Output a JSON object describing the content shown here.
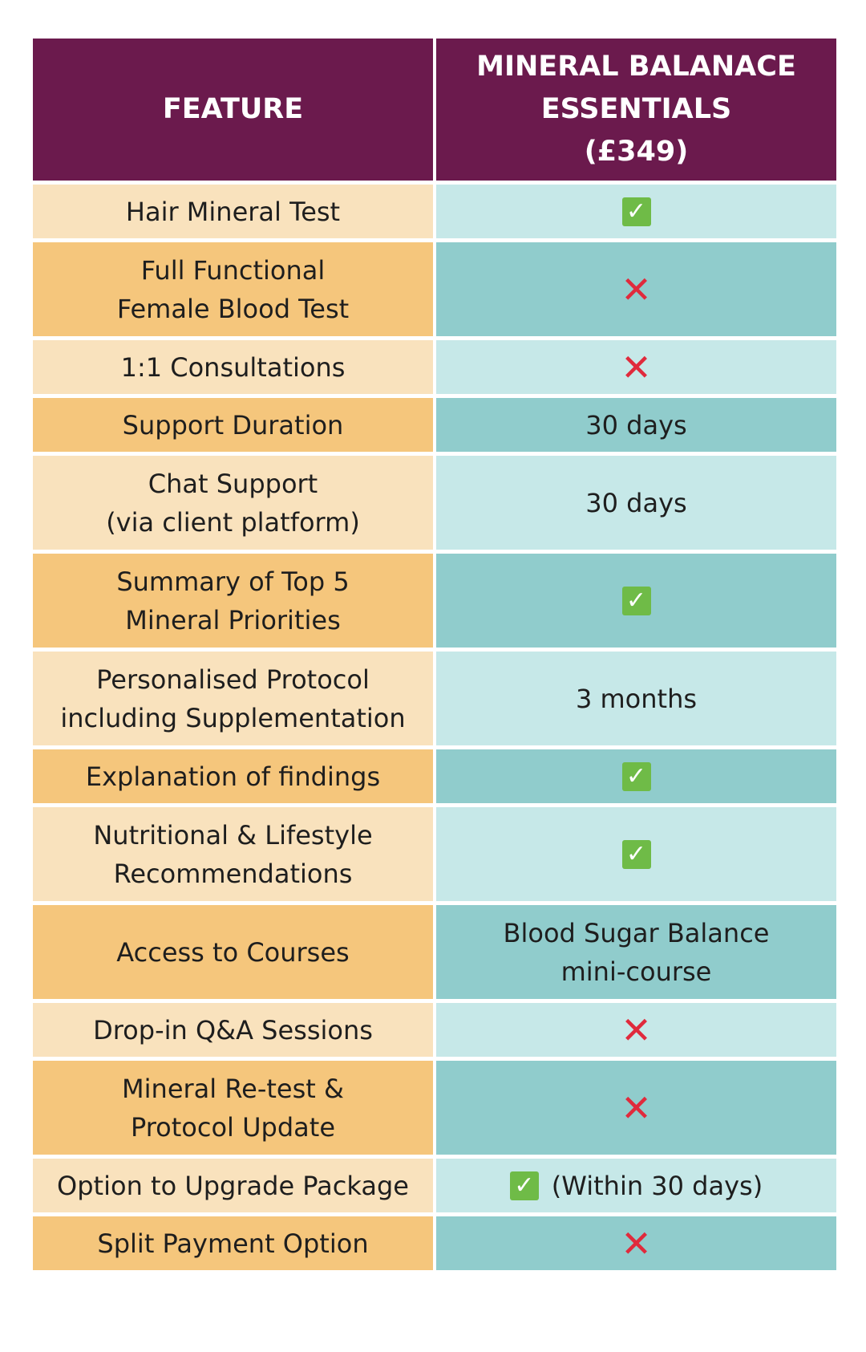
{
  "header": {
    "feature_label": "FEATURE",
    "package_label": "MINERAL BALANACE\nESSENTIALS\n(£349)"
  },
  "icons": {
    "check": "check-icon",
    "cross": "cross-icon",
    "check_color": "#6fbb47",
    "cross_color": "#e02a3c"
  },
  "colors": {
    "header_bg": "#6b1a4d",
    "light_feature_bg": "#f9e2bd",
    "dark_feature_bg": "#f5c67c",
    "light_value_bg": "#c6e8e8",
    "dark_value_bg": "#90cccc"
  },
  "rows": [
    {
      "feature": "Hair Mineral Test",
      "value_type": "check",
      "value": ""
    },
    {
      "feature": "Full Functional\nFemale Blood Test",
      "value_type": "cross",
      "value": ""
    },
    {
      "feature": "1:1 Consultations",
      "value_type": "cross",
      "value": ""
    },
    {
      "feature": "Support Duration",
      "value_type": "text",
      "value": "30 days"
    },
    {
      "feature": "Chat Support\n(via client platform)",
      "value_type": "text",
      "value": "30 days"
    },
    {
      "feature": "Summary of Top 5\nMineral Priorities",
      "value_type": "check",
      "value": ""
    },
    {
      "feature": "Personalised Protocol\nincluding Supplementation",
      "value_type": "text",
      "value": "3 months"
    },
    {
      "feature": "Explanation of findings",
      "value_type": "check",
      "value": ""
    },
    {
      "feature": "Nutritional & Lifestyle\nRecommendations",
      "value_type": "check",
      "value": ""
    },
    {
      "feature": "Access to Courses",
      "value_type": "text",
      "value": "Blood Sugar Balance\nmini-course"
    },
    {
      "feature": "Drop-in Q&A Sessions",
      "value_type": "cross",
      "value": ""
    },
    {
      "feature": "Mineral Re-test &\nProtocol Update",
      "value_type": "cross",
      "value": ""
    },
    {
      "feature": "Option to Upgrade Package",
      "value_type": "check-text",
      "value": "(Within 30 days)"
    },
    {
      "feature": "Split Payment Option",
      "value_type": "cross",
      "value": ""
    }
  ]
}
